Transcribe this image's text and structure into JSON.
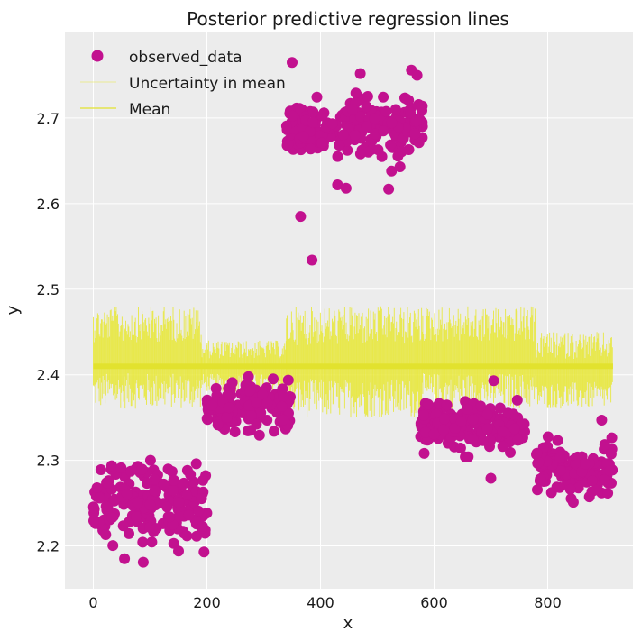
{
  "chart_data": {
    "type": "scatter",
    "title": "Posterior predictive regression lines",
    "xlabel": "x",
    "ylabel": "y",
    "xlim": [
      -50,
      950
    ],
    "ylim": [
      2.15,
      2.8
    ],
    "grid": true,
    "xticks": [
      0,
      200,
      400,
      600,
      800
    ],
    "yticks": [
      2.2,
      2.3,
      2.4,
      2.5,
      2.6,
      2.7
    ],
    "legend_position": "top-left",
    "colors": {
      "observed": "#c2118f",
      "mean": "#e2e22e",
      "uncertainty": "#e8e83a",
      "plot_background": "#ececec",
      "grid": "#ffffff"
    },
    "legend": [
      {
        "label": "observed_data",
        "marker": "dot"
      },
      {
        "label": "Uncertainty in mean",
        "marker": "line-faint"
      },
      {
        "label": "Mean",
        "marker": "line"
      }
    ],
    "series": [
      {
        "name": "observed_data",
        "type": "scatter",
        "clusters": [
          {
            "x_range": [
              0,
              200
            ],
            "y_center": 2.25,
            "y_spread": 0.035,
            "n": 200
          },
          {
            "x_range": [
              200,
              350
            ],
            "y_center": 2.36,
            "y_spread": 0.025,
            "n": 150
          },
          {
            "x_range": [
              340,
              580
            ],
            "y_center": 2.69,
            "y_spread": 0.025,
            "n": 240
          },
          {
            "x_range": [
              575,
              760
            ],
            "y_center": 2.34,
            "y_spread": 0.02,
            "n": 185
          },
          {
            "x_range": [
              780,
              915
            ],
            "y_center": 2.29,
            "y_spread": 0.022,
            "n": 135
          }
        ],
        "outliers": [
          {
            "x": 350,
            "y": 2.765
          },
          {
            "x": 365,
            "y": 2.585
          },
          {
            "x": 385,
            "y": 2.534
          },
          {
            "x": 470,
            "y": 2.752
          },
          {
            "x": 560,
            "y": 2.756
          },
          {
            "x": 570,
            "y": 2.75
          },
          {
            "x": 430,
            "y": 2.622
          },
          {
            "x": 445,
            "y": 2.618
          },
          {
            "x": 520,
            "y": 2.617
          },
          {
            "x": 525,
            "y": 2.638
          },
          {
            "x": 540,
            "y": 2.643
          },
          {
            "x": 705,
            "y": 2.393
          },
          {
            "x": 700,
            "y": 2.279
          },
          {
            "x": 660,
            "y": 2.304
          },
          {
            "x": 655,
            "y": 2.304
          },
          {
            "x": 845,
            "y": 2.251
          },
          {
            "x": 895,
            "y": 2.347
          },
          {
            "x": 55,
            "y": 2.185
          },
          {
            "x": 88,
            "y": 2.181
          },
          {
            "x": 150,
            "y": 2.194
          },
          {
            "x": 195,
            "y": 2.193
          }
        ]
      },
      {
        "name": "Mean",
        "type": "line",
        "x_range": [
          0,
          915
        ],
        "y": 2.41
      },
      {
        "name": "Uncertainty in mean",
        "type": "band",
        "x_range": [
          0,
          915
        ],
        "segments": [
          {
            "x_range": [
              0,
              190
            ],
            "y_low": 2.36,
            "y_high": 2.48
          },
          {
            "x_range": [
              190,
              340
            ],
            "y_low": 2.38,
            "y_high": 2.44
          },
          {
            "x_range": [
              340,
              580
            ],
            "y_low": 2.35,
            "y_high": 2.48
          },
          {
            "x_range": [
              580,
              780
            ],
            "y_low": 2.36,
            "y_high": 2.48
          },
          {
            "x_range": [
              780,
              915
            ],
            "y_low": 2.36,
            "y_high": 2.45
          }
        ]
      }
    ]
  }
}
